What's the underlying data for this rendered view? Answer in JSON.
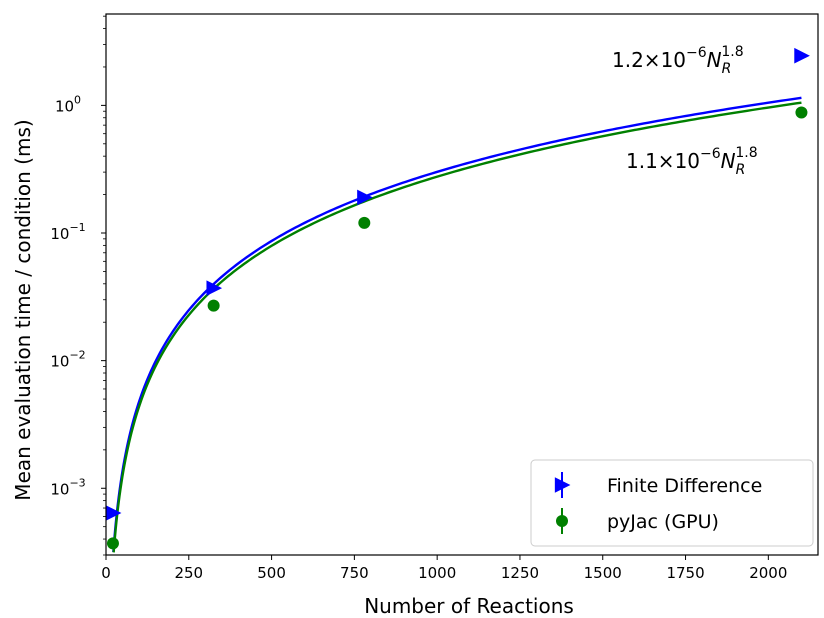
{
  "chart_data": {
    "type": "scatter",
    "xlabel": "Number of Reactions",
    "ylabel": "Mean evaluation time / condition (ms)",
    "xlim": [
      0,
      2150
    ],
    "ylim": [
      0.0003,
      5.2
    ],
    "yscale": "log",
    "xticks": [
      0,
      250,
      500,
      750,
      1000,
      1250,
      1500,
      1750,
      2000
    ],
    "yticks": [
      {
        "value": 0.001,
        "base": "10",
        "exp": "−3"
      },
      {
        "value": 0.01,
        "base": "10",
        "exp": "−2"
      },
      {
        "value": 0.1,
        "base": "10",
        "exp": "−1"
      },
      {
        "value": 1,
        "base": "10",
        "exp": "0"
      }
    ],
    "grid": false,
    "legend_position": "lower-right",
    "series": [
      {
        "name": "Finite Difference",
        "color": "#0000ff",
        "marker": "triangle-right",
        "x": [
          21,
          325,
          780,
          2100
        ],
        "y": [
          0.00064,
          0.037,
          0.19,
          2.45
        ],
        "fit": {
          "coef": 1.2e-06,
          "exp": 1.8,
          "x_start": 21,
          "x_end": 2100
        },
        "fit_label": {
          "coef": "1.2×10",
          "coef_exp": "−6",
          "var": "N",
          "sub": "R",
          "power": "1.8"
        }
      },
      {
        "name": "pyJac (GPU)",
        "color": "#008000",
        "marker": "circle",
        "x": [
          21,
          325,
          780,
          2100
        ],
        "y": [
          0.00037,
          0.027,
          0.12,
          0.88
        ],
        "fit": {
          "coef": 1.1e-06,
          "exp": 1.8,
          "x_start": 21,
          "x_end": 2100
        },
        "fit_label": {
          "coef": "1.1×10",
          "coef_exp": "−6",
          "var": "N",
          "sub": "R",
          "power": "1.8"
        }
      }
    ]
  }
}
